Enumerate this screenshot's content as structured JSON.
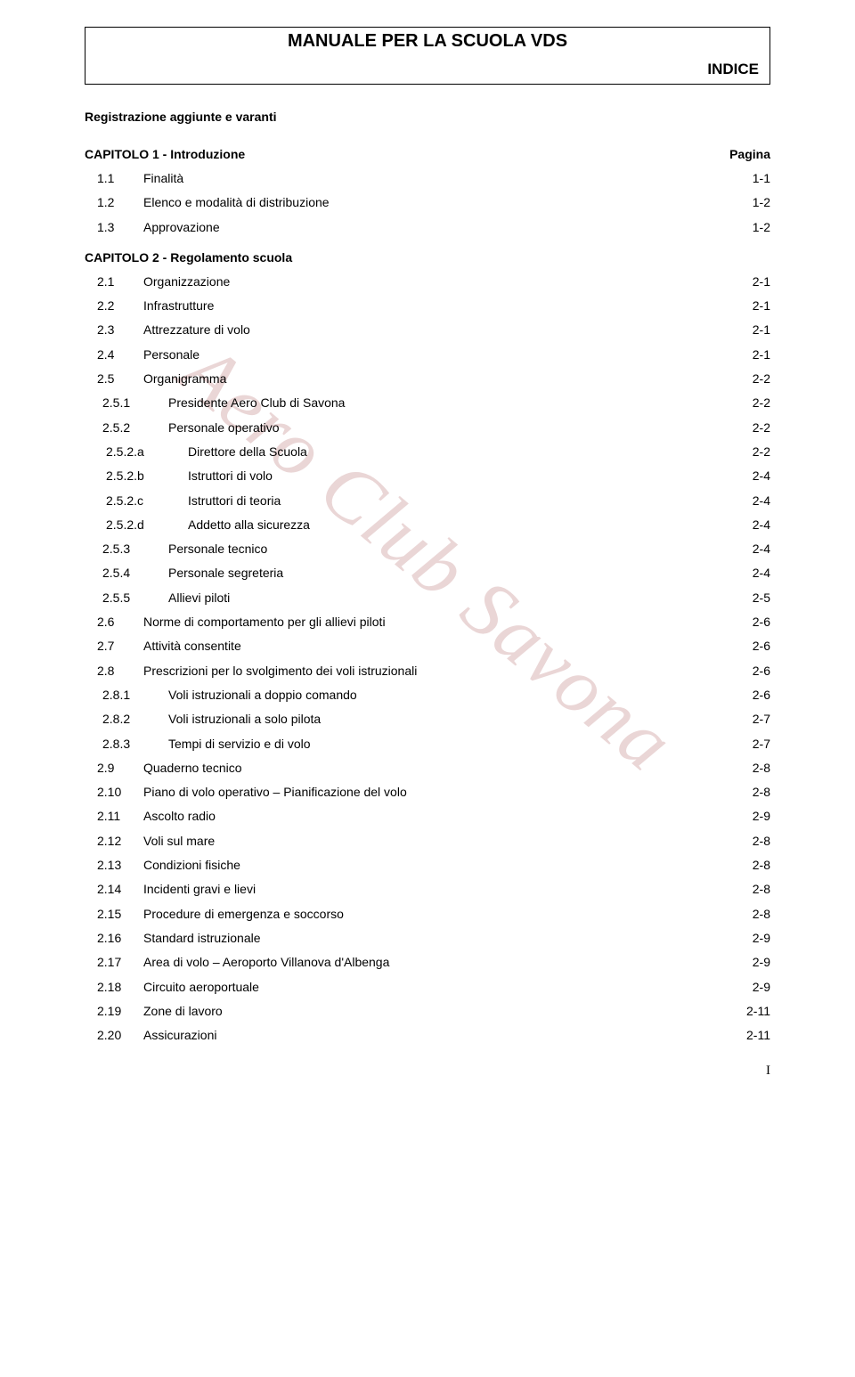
{
  "doc_title": "MANUALE PER LA SCUOLA VDS",
  "doc_subtitle": "INDICE",
  "watermark_text": "Aero Club Savona",
  "intro_line": "Registrazione aggiunte e varanti",
  "page_number": "I",
  "colors": {
    "text": "#000000",
    "background": "#ffffff",
    "watermark": "#ead6d6"
  },
  "typography": {
    "title_fontsize": 20,
    "subtitle_fontsize": 17,
    "body_fontsize": 14,
    "watermark_fontsize": 90
  },
  "sections": [
    {
      "heading_label": "CAPITOLO 1 - Introduzione",
      "heading_page": "Pagina",
      "rows": [
        {
          "lvl": 1,
          "num": "1.1",
          "label": "Finalità",
          "pg": "1-1"
        },
        {
          "lvl": 1,
          "num": "1.2",
          "label": "Elenco e modalità di distribuzione",
          "pg": "1-2"
        },
        {
          "lvl": 1,
          "num": "1.3",
          "label": "Approvazione",
          "pg": "1-2"
        }
      ]
    },
    {
      "heading_label": "CAPITOLO 2 - Regolamento scuola",
      "heading_page": "",
      "rows": [
        {
          "lvl": 1,
          "num": "2.1",
          "label": "Organizzazione",
          "pg": "2-1"
        },
        {
          "lvl": 1,
          "num": "2.2",
          "label": "Infrastrutture",
          "pg": "2-1"
        },
        {
          "lvl": 1,
          "num": "2.3",
          "label": "Attrezzature di volo",
          "pg": "2-1"
        },
        {
          "lvl": 1,
          "num": "2.4",
          "label": "Personale",
          "pg": "2-1"
        },
        {
          "lvl": 1,
          "num": "2.5",
          "label": "Organigramma",
          "pg": "2-2"
        },
        {
          "lvl": 2,
          "num": "2.5.1",
          "label": "Presidente Aero Club di Savona",
          "pg": "2-2"
        },
        {
          "lvl": 2,
          "num": "2.5.2",
          "label": "Personale operativo",
          "pg": "2-2"
        },
        {
          "lvl": 3,
          "num": "2.5.2.a",
          "label": "Direttore della Scuola",
          "pg": "2-2"
        },
        {
          "lvl": 3,
          "num": "2.5.2.b",
          "label": "Istruttori di volo",
          "pg": "2-4"
        },
        {
          "lvl": 3,
          "num": "2.5.2.c",
          "label": "Istruttori di teoria",
          "pg": "2-4"
        },
        {
          "lvl": 3,
          "num": "2.5.2.d",
          "label": "Addetto alla sicurezza",
          "pg": "2-4"
        },
        {
          "lvl": 2,
          "num": "2.5.3",
          "label": "Personale tecnico",
          "pg": "2-4"
        },
        {
          "lvl": 2,
          "num": "2.5.4",
          "label": "Personale segreteria",
          "pg": "2-4"
        },
        {
          "lvl": 2,
          "num": "2.5.5",
          "label": "Allievi piloti",
          "pg": "2-5"
        },
        {
          "lvl": 1,
          "num": "2.6",
          "label": "Norme di comportamento per gli allievi piloti",
          "pg": "2-6"
        },
        {
          "lvl": 1,
          "num": "2.7",
          "label": "Attività consentite",
          "pg": "2-6"
        },
        {
          "lvl": 1,
          "num": "2.8",
          "label": "Prescrizioni per lo svolgimento dei voli istruzionali",
          "pg": "2-6"
        },
        {
          "lvl": 2,
          "num": "2.8.1",
          "label": "Voli istruzionali a doppio comando",
          "pg": "2-6"
        },
        {
          "lvl": 2,
          "num": "2.8.2",
          "label": "Voli istruzionali a solo pilota",
          "pg": "2-7"
        },
        {
          "lvl": 2,
          "num": "2.8.3",
          "label": "Tempi di servizio e di volo",
          "pg": "2-7"
        },
        {
          "lvl": 1,
          "num": "2.9",
          "label": "Quaderno tecnico",
          "pg": "2-8"
        },
        {
          "lvl": 1,
          "num": "2.10",
          "label": "Piano di volo operativo – Pianificazione del volo",
          "pg": "2-8"
        },
        {
          "lvl": 1,
          "num": "2.11",
          "label": "Ascolto radio",
          "pg": "2-9"
        },
        {
          "lvl": 1,
          "num": "2.12",
          "label": "Voli sul mare",
          "pg": "2-8"
        },
        {
          "lvl": 1,
          "num": "2.13",
          "label": "Condizioni fisiche",
          "pg": "2-8"
        },
        {
          "lvl": 1,
          "num": "2.14",
          "label": "Incidenti gravi e lievi",
          "pg": "2-8"
        },
        {
          "lvl": 1,
          "num": "2.15",
          "label": "Procedure di emergenza e soccorso",
          "pg": "2-8"
        },
        {
          "lvl": 1,
          "num": "2.16",
          "label": "Standard istruzionale",
          "pg": "2-9"
        },
        {
          "lvl": 1,
          "num": "2.17",
          "label": "Area di volo – Aeroporto Villanova d'Albenga",
          "pg": "2-9"
        },
        {
          "lvl": 1,
          "num": "2.18",
          "label": "Circuito aeroportuale",
          "pg": "2-9"
        },
        {
          "lvl": 1,
          "num": "2.19",
          "label": "Zone di lavoro",
          "pg": "2-11"
        },
        {
          "lvl": 1,
          "num": "2.20",
          "label": "Assicurazioni",
          "pg": "2-11"
        }
      ]
    }
  ]
}
